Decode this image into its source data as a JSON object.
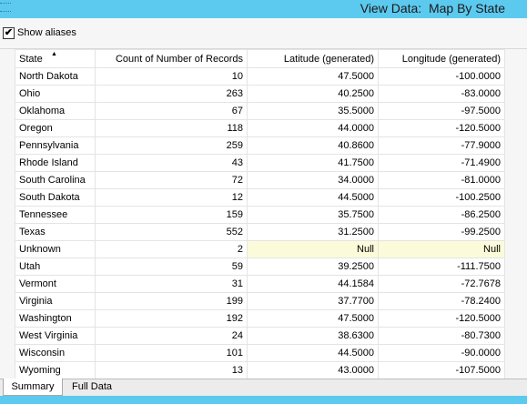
{
  "window": {
    "title": "View Data:  Map By State"
  },
  "toolbar": {
    "show_aliases_label": "Show aliases",
    "show_aliases_checked": true,
    "check_glyph": "✔"
  },
  "grid": {
    "columns": [
      "State",
      "Count of Number of Records",
      "Latitude (generated)",
      "Longitude (generated)"
    ],
    "sort_indicator": "▲",
    "rows": [
      [
        "North Dakota",
        "10",
        "47.5000",
        "-100.0000"
      ],
      [
        "Ohio",
        "263",
        "40.2500",
        "-83.0000"
      ],
      [
        "Oklahoma",
        "67",
        "35.5000",
        "-97.5000"
      ],
      [
        "Oregon",
        "118",
        "44.0000",
        "-120.5000"
      ],
      [
        "Pennsylvania",
        "259",
        "40.8600",
        "-77.9000"
      ],
      [
        "Rhode Island",
        "43",
        "41.7500",
        "-71.4900"
      ],
      [
        "South Carolina",
        "72",
        "34.0000",
        "-81.0000"
      ],
      [
        "South Dakota",
        "12",
        "44.5000",
        "-100.2500"
      ],
      [
        "Tennessee",
        "159",
        "35.7500",
        "-86.2500"
      ],
      [
        "Texas",
        "552",
        "31.2500",
        "-99.2500"
      ],
      [
        "Unknown",
        "2",
        "Null",
        "Null"
      ],
      [
        "Utah",
        "59",
        "39.2500",
        "-111.7500"
      ],
      [
        "Vermont",
        "31",
        "44.1584",
        "-72.7678"
      ],
      [
        "Virginia",
        "199",
        "37.7700",
        "-78.2400"
      ],
      [
        "Washington",
        "192",
        "47.5000",
        "-120.5000"
      ],
      [
        "West Virginia",
        "24",
        "38.6300",
        "-80.7300"
      ],
      [
        "Wisconsin",
        "101",
        "44.5000",
        "-90.0000"
      ],
      [
        "Wyoming",
        "13",
        "43.0000",
        "-107.5000"
      ]
    ]
  },
  "tabs": [
    {
      "label": "Summary",
      "active": true
    },
    {
      "label": "Full Data",
      "active": false
    }
  ]
}
